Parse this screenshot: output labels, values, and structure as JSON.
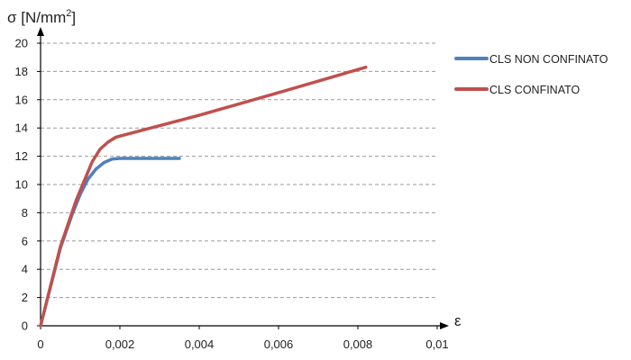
{
  "chart_data": {
    "type": "line",
    "ylabel": "σ [N/mm²]",
    "ylabel_base": "σ [N/mm",
    "ylabel_sup": "2",
    "ylabel_end": "]",
    "xlabel": "ε",
    "xlim": [
      0,
      0.01
    ],
    "ylim": [
      0,
      20
    ],
    "x_ticks": [
      0,
      0.002,
      0.004,
      0.006,
      0.008,
      0.01
    ],
    "x_tick_labels": [
      "0",
      "0,002",
      "0,004",
      "0,006",
      "0,008",
      "0,01"
    ],
    "y_ticks": [
      0,
      2,
      4,
      6,
      8,
      10,
      12,
      14,
      16,
      18,
      20
    ],
    "y_tick_labels": [
      "0",
      "2",
      "4",
      "6",
      "8",
      "10",
      "12",
      "14",
      "16",
      "18",
      "20"
    ],
    "grid": "horizontal dashed",
    "legend_position": "right",
    "series": [
      {
        "name": "CLS NON CONFINATO",
        "color": "#4F81BD",
        "x": [
          0,
          0.0005,
          0.0008,
          0.001,
          0.0012,
          0.0014,
          0.0016,
          0.0018,
          0.002,
          0.0025,
          0.003,
          0.0035
        ],
        "y": [
          0,
          5.5,
          7.9,
          9.3,
          10.4,
          11.1,
          11.55,
          11.8,
          11.85,
          11.85,
          11.85,
          11.85
        ]
      },
      {
        "name": "CLS CONFINATO",
        "color": "#C0504D",
        "x": [
          0,
          0.0005,
          0.0009,
          0.0013,
          0.0015,
          0.0017,
          0.0019,
          0.0021,
          0.004,
          0.006,
          0.0082
        ],
        "y": [
          0,
          5.6,
          8.9,
          11.6,
          12.5,
          13.0,
          13.35,
          13.5,
          14.9,
          16.5,
          18.3
        ]
      }
    ]
  }
}
